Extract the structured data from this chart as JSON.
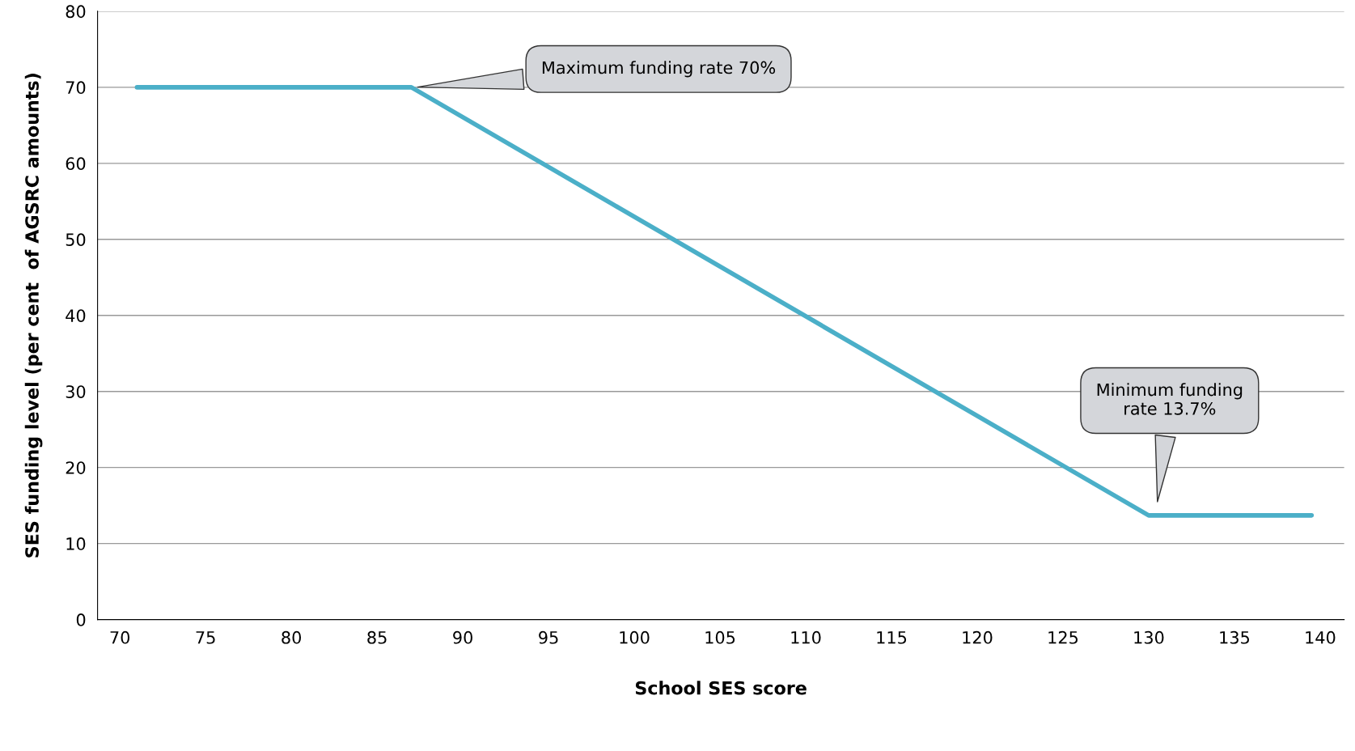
{
  "chart_data": {
    "type": "line",
    "xlabel": "School SES score",
    "ylabel": "SES funding level (per cent  of AGSRC amounts)",
    "x": [
      71,
      87,
      130,
      139.5
    ],
    "series": [
      {
        "color": "#4bafc8",
        "values": [
          70,
          70,
          13.7,
          13.7
        ]
      }
    ],
    "xlim": [
      68.7,
      141.4
    ],
    "xticks": [
      70,
      75,
      80,
      85,
      90,
      95,
      100,
      105,
      110,
      115,
      120,
      125,
      130,
      135,
      140
    ],
    "ylim": [
      0,
      80
    ],
    "yticks": [
      0,
      10,
      20,
      30,
      40,
      50,
      60,
      70,
      80
    ],
    "grid": "y",
    "marker": "none",
    "line_style": "solid",
    "annotations": [
      "Maximum funding rate 70%",
      "Minimum funding\nrate 13.7%"
    ]
  }
}
